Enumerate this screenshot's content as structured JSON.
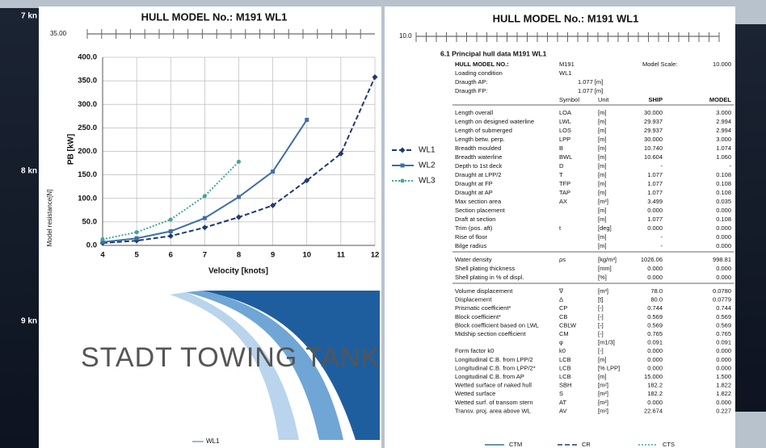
{
  "background": {
    "labels": [
      "7 kn",
      "8 kn",
      "9 kn"
    ],
    "y_axis_label": "Model resistance[N]",
    "top_value": "35.00",
    "legend": "WL1"
  },
  "chart_data": {
    "type": "line",
    "title": "HULL MODEL No.: M191 WL1",
    "x_label": "Velocity [knots]",
    "y_label": "PB [kW]",
    "x": [
      4,
      5,
      6,
      7,
      8,
      9,
      10,
      11,
      12
    ],
    "series": [
      {
        "name": "WL1",
        "color": "#1f3a6e",
        "dash": "dashed",
        "marker": "diamond",
        "values": [
          5,
          10,
          20,
          38,
          60,
          85,
          138,
          195,
          358
        ]
      },
      {
        "name": "WL2",
        "color": "#3d6fa5",
        "dash": "solid",
        "marker": "square",
        "values": [
          7,
          15,
          30,
          58,
          103,
          157,
          267,
          null,
          null
        ]
      },
      {
        "name": "WL3",
        "color": "#46a39e",
        "dash": "dotted",
        "marker": "circle",
        "values": [
          13,
          28,
          55,
          105,
          178,
          null,
          null,
          null,
          null
        ]
      }
    ],
    "xlim": [
      4,
      12
    ],
    "ylim": [
      0,
      400
    ],
    "xticks": [
      4,
      5,
      6,
      7,
      8,
      9,
      10,
      11,
      12
    ],
    "yticks": [
      {
        "value": 0,
        "label": "0.0"
      },
      {
        "value": 50,
        "label": "50.0"
      },
      {
        "value": 100,
        "label": "100.0"
      },
      {
        "value": 150,
        "label": "150.0"
      },
      {
        "value": 200,
        "label": "200.0"
      },
      {
        "value": 250,
        "label": "250.0"
      },
      {
        "value": 300,
        "label": "300.0"
      },
      {
        "value": 350,
        "label": "350.0"
      },
      {
        "value": 400,
        "label": "400.0"
      }
    ],
    "grid": true,
    "legend": "right"
  },
  "logo": "STADT TOWING TANK",
  "table_doc": {
    "title": "HULL MODEL No.: M191 WL1",
    "ruler_label": "10.0",
    "section": "6.1    Principal hull data M191 WL1",
    "info": [
      [
        "HULL MODEL NO.:",
        "M191",
        "Model Scale:",
        "10.000"
      ],
      [
        "Loading condition",
        "WL1"
      ],
      [
        "Draugth AP:",
        "1.077 [m]"
      ],
      [
        "Draugth FP:",
        "1.077 [m]"
      ]
    ],
    "columns": [
      "Symbol",
      "Unit",
      "SHIP",
      "MODEL"
    ],
    "groups": [
      [
        [
          "Length overall",
          "LOA",
          "[m]",
          "30.000",
          "3.000"
        ],
        [
          "Length on designed waterline",
          "LWL",
          "[m]",
          "29.937",
          "2.994"
        ],
        [
          "Length of submerged",
          "LOS",
          "[m]",
          "29.937",
          "2.994"
        ],
        [
          "Length betw. perp.",
          "LPP",
          "[m]",
          "30.000",
          "3.000"
        ],
        [
          "Breadth moulded",
          "B",
          "[m]",
          "10.740",
          "1.074"
        ],
        [
          "Breadth waterline",
          "BWL",
          "[m]",
          "10.604",
          "1.060"
        ],
        [
          "Depth to 1st deck",
          "D",
          "[m]",
          "-",
          "-"
        ],
        [
          "Draught at LPP/2",
          "T",
          "[m]",
          "1.077",
          "0.108"
        ],
        [
          "Draught at FP",
          "TFP",
          "[m]",
          "1.077",
          "0.108"
        ],
        [
          "Draught at AP",
          "TAP",
          "[m]",
          "1.077",
          "0.108"
        ],
        [
          "Max section area",
          "AX",
          "[m²]",
          "3.499",
          "0.035"
        ],
        [
          "Section placement",
          null,
          "[m]",
          "0.000",
          "0.000"
        ],
        [
          "Draft at section",
          null,
          "[m]",
          "1.077",
          "0.108"
        ],
        [
          "Trim (pos. aft)",
          "t",
          "[deg]",
          "0.000",
          "0.000"
        ],
        [
          "Rise of floor",
          null,
          "[m]",
          "-",
          "0.000"
        ],
        [
          "Bilge radius",
          null,
          "[m]",
          "-",
          "0.000"
        ]
      ],
      [
        [
          "Water density",
          "ρs",
          "[kg/m³]",
          "1026.06",
          "998.81"
        ],
        [
          "Shell plating thickness",
          null,
          "[mm]",
          "0.000",
          "0.000"
        ],
        [
          "Shell plating in % of displ.",
          null,
          "[%]",
          "0.000",
          "0.000"
        ]
      ],
      [
        [
          "Volume displacement",
          "∇",
          "[m³]",
          "78.0",
          "0.0780"
        ],
        [
          "Displacement",
          "Δ",
          "[t]",
          "80.0",
          "0.0779"
        ],
        [
          "Prismatic coefficient*",
          "CP",
          "[-]",
          "0.744",
          "0.744"
        ],
        [
          "Block coefficient*",
          "CB",
          "[-]",
          "0.569",
          "0.569"
        ],
        [
          "Block coefficient based on LWL",
          "CBLW",
          "[-]",
          "0.569",
          "0.569"
        ],
        [
          "Midship section coefficient",
          "CM",
          "[-]",
          "0.765",
          "0.765"
        ],
        [
          null,
          "φ",
          "[m1/3]",
          "0.091",
          "0.091"
        ],
        [
          "Form factor k0",
          "k0",
          "[-]",
          "0.000",
          "0.000"
        ],
        [
          "Longitudinal C.B. from LPP/2",
          "LCB",
          "[m]",
          "0.000",
          "0.000"
        ],
        [
          "Longitudinal C.B. from LPP/2*",
          "LCB",
          "[% LPP]",
          "0.000",
          "0.000"
        ],
        [
          "Longitudinal C.B. from AP",
          "LCB",
          "[m]",
          "15.000",
          "1.500"
        ],
        [
          "Wetted surface of naked hull",
          "SBH",
          "[m²]",
          "182.2",
          "1.822"
        ],
        [
          "Wetted surface",
          "S",
          "[m²]",
          "182.2",
          "1.822"
        ],
        [
          "Wetted surf. of transom stern",
          "AT",
          "[m²]",
          "0.000",
          "0.000"
        ],
        [
          "Transv. proj. area above WL",
          "AV",
          "[m²]",
          "22.674",
          "0.227"
        ]
      ]
    ],
    "legend": [
      "CTM",
      "CR",
      "CTS"
    ]
  }
}
